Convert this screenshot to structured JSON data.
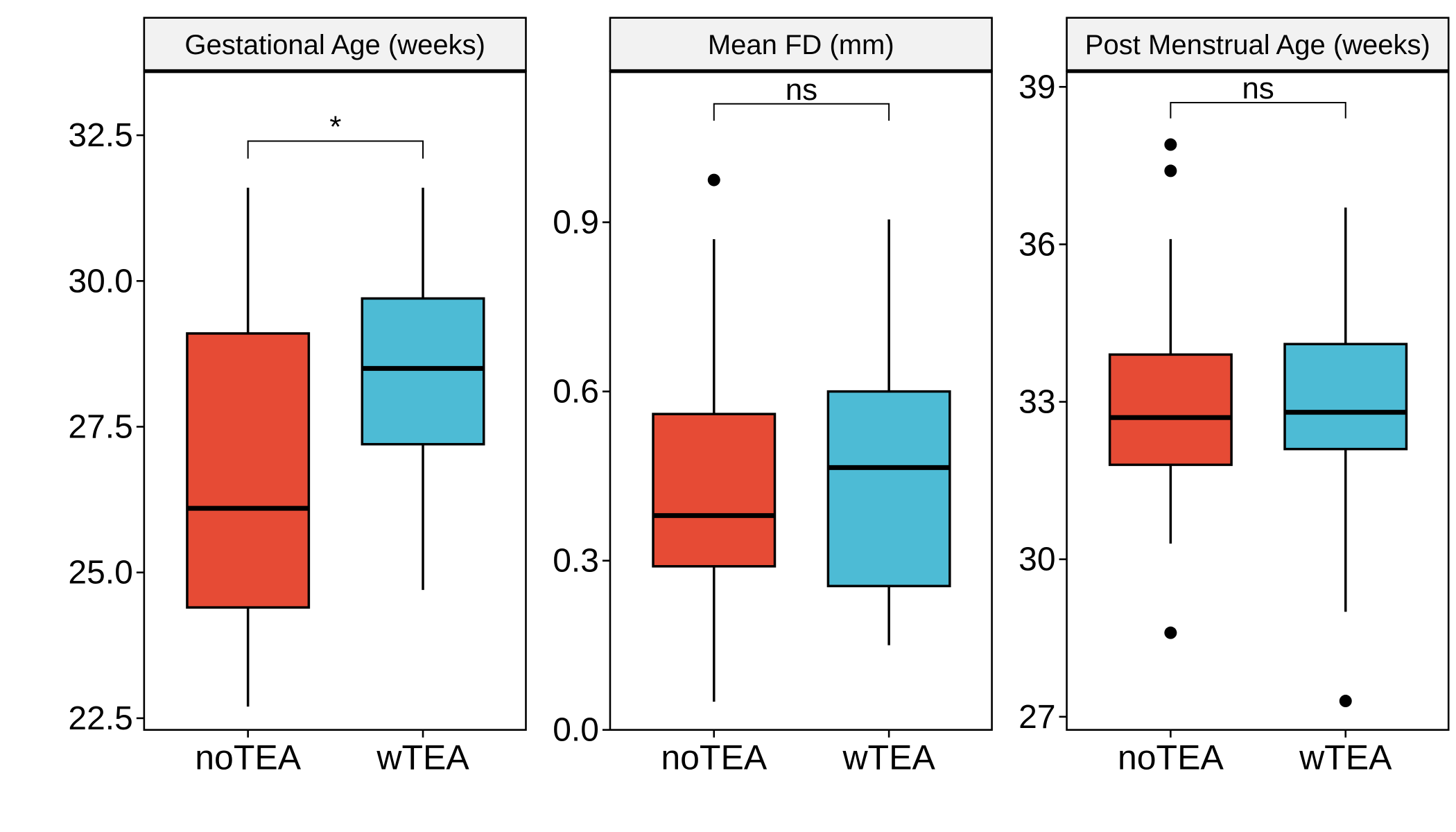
{
  "colors": {
    "noTEA": "#E64B35",
    "wTEA": "#4DBBD5",
    "strip_bg": "#F2F2F2",
    "line": "#000000"
  },
  "chart_data": [
    {
      "type": "box",
      "title": "Gestational Age (weeks)",
      "categories": [
        "noTEA",
        "wTEA"
      ],
      "ylim": [
        22.3,
        33.6
      ],
      "yticks": [
        22.5,
        25.0,
        27.5,
        30.0,
        32.5
      ],
      "ytick_labels": [
        "22.5",
        "25.0",
        "27.5",
        "30.0",
        "32.5"
      ],
      "boxes": [
        {
          "group": "noTEA",
          "whisker_low": 22.7,
          "q1": 24.4,
          "median": 26.1,
          "q3": 29.1,
          "whisker_high": 31.6,
          "outliers": []
        },
        {
          "group": "wTEA",
          "whisker_low": 24.7,
          "q1": 27.2,
          "median": 28.5,
          "q3": 29.7,
          "whisker_high": 31.6,
          "outliers": []
        }
      ],
      "significance": {
        "label": "*",
        "bracket_y": 32.4,
        "tick_down_to": 32.1
      }
    },
    {
      "type": "box",
      "title": "Mean FD (mm)",
      "categories": [
        "noTEA",
        "wTEA"
      ],
      "ylim": [
        0.0,
        1.168
      ],
      "yticks": [
        0.0,
        0.3,
        0.6,
        0.9
      ],
      "ytick_labels": [
        "0.0",
        "0.3",
        "0.6",
        "0.9"
      ],
      "boxes": [
        {
          "group": "noTEA",
          "whisker_low": 0.05,
          "q1": 0.29,
          "median": 0.38,
          "q3": 0.56,
          "whisker_high": 0.87,
          "outliers": [
            0.975
          ]
        },
        {
          "group": "wTEA",
          "whisker_low": 0.15,
          "q1": 0.255,
          "median": 0.465,
          "q3": 0.6,
          "whisker_high": 0.905,
          "outliers": []
        }
      ],
      "significance": {
        "label": "ns",
        "bracket_y": 1.11,
        "tick_down_to": 1.08
      }
    },
    {
      "type": "box",
      "title": "Post Menstrual Age (weeks)",
      "categories": [
        "noTEA",
        "wTEA"
      ],
      "ylim": [
        26.75,
        39.3
      ],
      "yticks": [
        27,
        30,
        33,
        36,
        39
      ],
      "ytick_labels": [
        "27",
        "30",
        "33",
        "36",
        "39"
      ],
      "boxes": [
        {
          "group": "noTEA",
          "whisker_low": 30.3,
          "q1": 31.8,
          "median": 32.7,
          "q3": 33.9,
          "whisker_high": 36.1,
          "outliers": [
            37.9,
            37.4,
            28.6
          ]
        },
        {
          "group": "wTEA",
          "whisker_low": 29.0,
          "q1": 32.1,
          "median": 32.8,
          "q3": 34.1,
          "whisker_high": 36.7,
          "outliers": [
            27.3
          ]
        }
      ],
      "significance": {
        "label": "ns",
        "bracket_y": 38.7,
        "tick_down_to": 38.4
      }
    }
  ]
}
